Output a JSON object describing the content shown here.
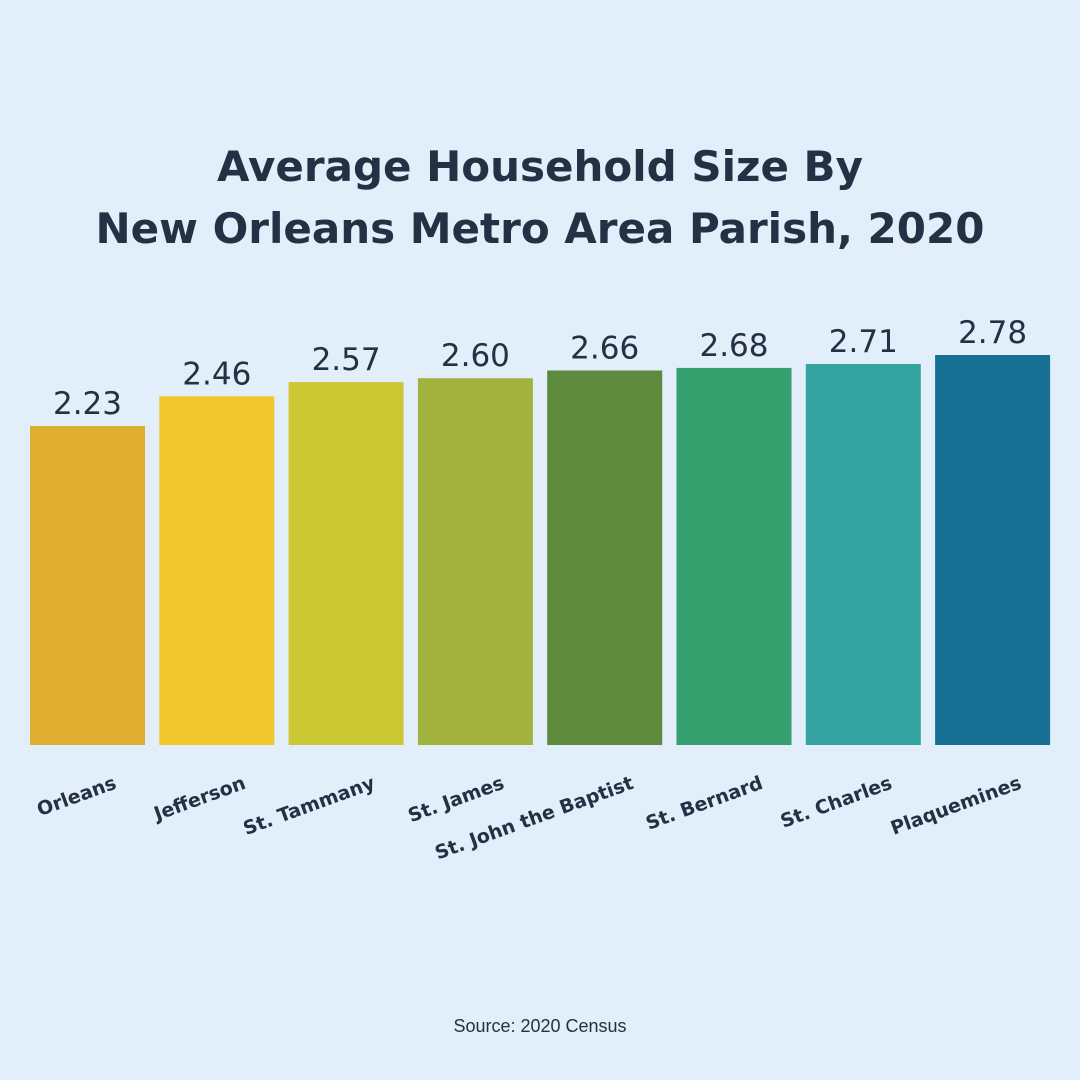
{
  "chart_data": {
    "type": "bar",
    "title_lines": [
      "Average Household Size By",
      "New Orleans Metro Area Parish, 2020"
    ],
    "categories": [
      "Orleans",
      "Jefferson",
      "St. Tammany",
      "St. James",
      "St. John the Baptist",
      "St. Bernard",
      "St. Charles",
      "Plaquemines"
    ],
    "values": [
      2.23,
      2.46,
      2.57,
      2.6,
      2.66,
      2.68,
      2.71,
      2.78
    ],
    "value_labels": [
      "2.23",
      "2.46",
      "2.57",
      "2.60",
      "2.66",
      "2.68",
      "2.71",
      "2.78"
    ],
    "colors": [
      "#dfad30",
      "#efc62c",
      "#cbc833",
      "#a2b23f",
      "#5e8a3e",
      "#35a06e",
      "#33a39f",
      "#186f94"
    ],
    "icon": "person-icon",
    "grid": false,
    "legend": "none",
    "xlabel": "",
    "ylabel": "",
    "source": "Source: 2020 Census"
  }
}
